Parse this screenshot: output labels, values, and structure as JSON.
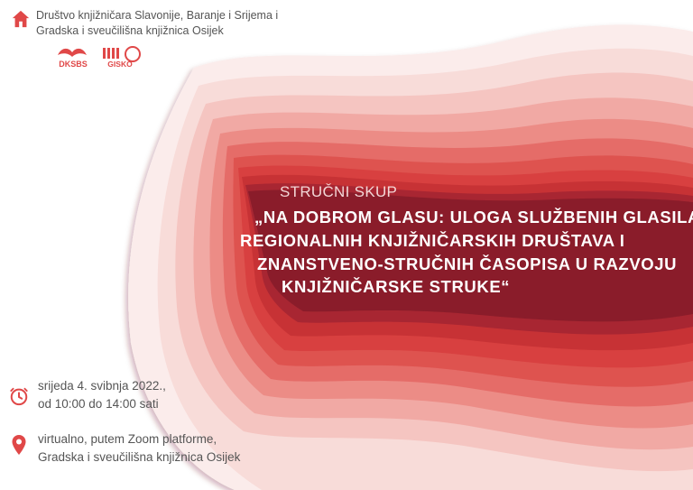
{
  "organizer": {
    "line1": "Društvo knjižničara Slavonije, Baranje i Srijema i",
    "line2": "Gradska i sveučilišna knjižnica Osijek"
  },
  "logos": {
    "dksbs": "DKSBS",
    "gisko": "GISKO"
  },
  "event": {
    "subtitle": "STRUČNI SKUP",
    "title_lines": [
      "„NA DOBROM GLASU: ULOGA SLUŽBENIH GLASILA",
      "REGIONALNIH KNJIŽNIČARSKIH DRUŠTAVA I",
      "ZNANSTVENO-STRUČNIH ČASOPISA U RAZVOJU",
      "KNJIŽNIČARSKE STRUKE“"
    ],
    "date_line1": "srijeda 4. svibnja 2022.,",
    "date_line2": "od 10:00 do 14:00 sati",
    "place_line1": "virtualno, putem Zoom platforme,",
    "place_line2": "Gradska i sveučilišna knjižnica Osijek"
  },
  "colors": {
    "accent": "#e04848",
    "deep": "#7e1d28",
    "text": "#555555"
  },
  "icons": [
    "home-icon",
    "clock-icon",
    "location-pin-icon"
  ]
}
